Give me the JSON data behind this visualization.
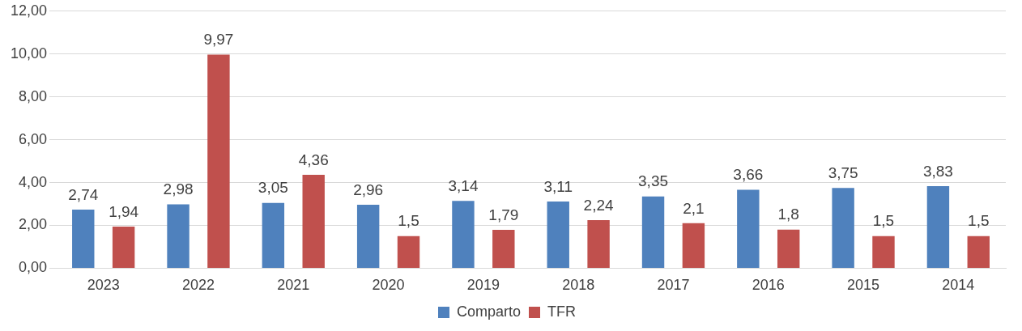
{
  "chart_data": {
    "type": "bar",
    "categories": [
      "2023",
      "2022",
      "2021",
      "2020",
      "2019",
      "2018",
      "2017",
      "2016",
      "2015",
      "2014"
    ],
    "series": [
      {
        "name": "Comparto",
        "color": "#4f81bd",
        "values": [
          2.74,
          2.98,
          3.05,
          2.96,
          3.14,
          3.11,
          3.35,
          3.66,
          3.75,
          3.83
        ],
        "value_labels": [
          "2,74",
          "2,98",
          "3,05",
          "2,96",
          "3,14",
          "3,11",
          "3,35",
          "3,66",
          "3,75",
          "3,83"
        ]
      },
      {
        "name": "TFR",
        "color": "#c0504d",
        "values": [
          1.94,
          9.97,
          4.36,
          1.5,
          1.79,
          2.24,
          2.1,
          1.8,
          1.5,
          1.5
        ],
        "value_labels": [
          "1,94",
          "9,97",
          "4,36",
          "1,5",
          "1,79",
          "2,24",
          "2,1",
          "1,8",
          "1,5",
          "1,5"
        ]
      }
    ],
    "ylim": [
      0,
      12
    ],
    "yticks": [
      {
        "value": 0,
        "label": "0,00"
      },
      {
        "value": 2,
        "label": "2,00"
      },
      {
        "value": 4,
        "label": "4,00"
      },
      {
        "value": 6,
        "label": "6,00"
      },
      {
        "value": 8,
        "label": "8,00"
      },
      {
        "value": 10,
        "label": "10,00"
      },
      {
        "value": 12,
        "label": "12,00"
      }
    ],
    "grid": "y",
    "legend": "bottom"
  }
}
